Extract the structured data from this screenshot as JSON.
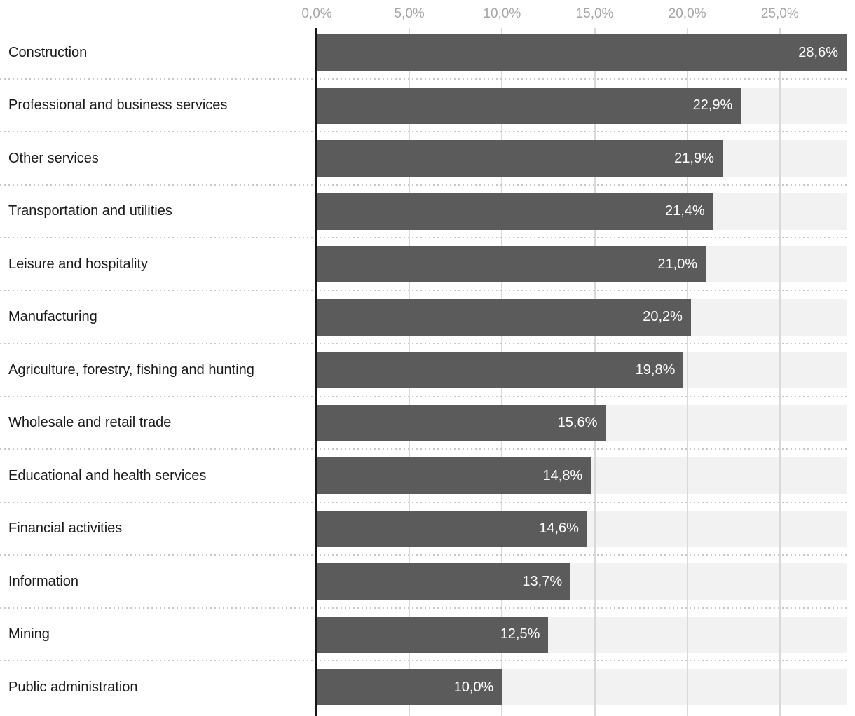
{
  "chart_data": {
    "type": "bar",
    "orientation": "horizontal",
    "title": "",
    "xlabel": "",
    "ylabel": "",
    "xlim": [
      0,
      28.6
    ],
    "grid": true,
    "legend": "none",
    "categories": [
      "Construction",
      "Professional and business services",
      "Other services",
      "Transportation and utilities",
      "Leisure and hospitality",
      "Manufacturing",
      "Agriculture, forestry, fishing and hunting",
      "Wholesale and retail trade",
      "Educational and health services",
      "Financial activities",
      "Information",
      "Mining",
      "Public administration"
    ],
    "values": [
      28.6,
      22.9,
      21.9,
      21.4,
      21.0,
      20.2,
      19.8,
      15.6,
      14.8,
      14.6,
      13.7,
      12.5,
      10.0
    ],
    "value_labels": [
      "28,6%",
      "22,9%",
      "21,9%",
      "21,4%",
      "21,0%",
      "20,2%",
      "19,8%",
      "15,6%",
      "14,8%",
      "14,6%",
      "13,7%",
      "12,5%",
      "10,0%"
    ],
    "x_ticks": [
      {
        "value": 0,
        "label": "0,0%"
      },
      {
        "value": 5,
        "label": "5,0%"
      },
      {
        "value": 10,
        "label": "10,0%"
      },
      {
        "value": 15,
        "label": "15,0%"
      },
      {
        "value": 20,
        "label": "20,0%"
      },
      {
        "value": 25,
        "label": "25,0%"
      }
    ],
    "colors": {
      "bar": "#5b5b5b",
      "row_band": "#f2f2f2",
      "gridline": "#d9d9d9",
      "separator": "#c9c9c9",
      "axis_line": "#161616",
      "tick_label": "#a6a6a6",
      "category_label": "#1a1a1a",
      "value_label": "#ffffff"
    }
  }
}
